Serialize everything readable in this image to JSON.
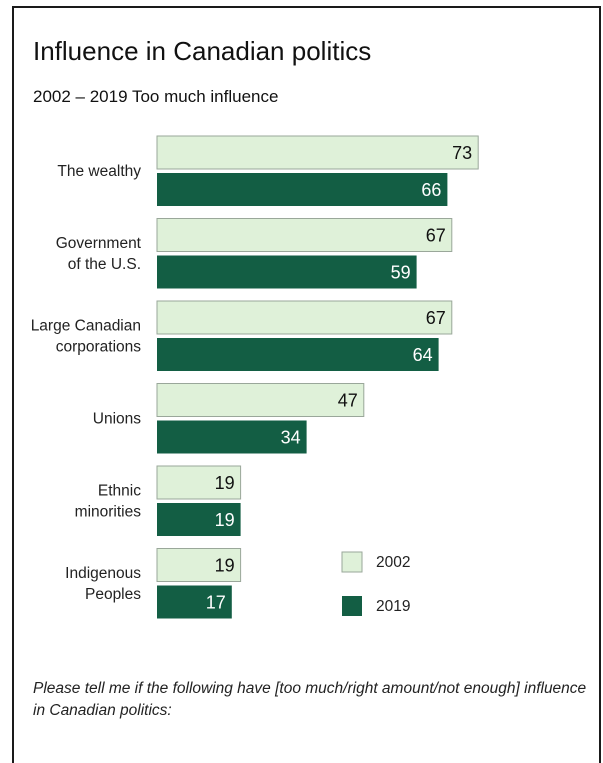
{
  "title": "Influence in Canadian politics",
  "subtitle": "2002 – 2019 Too much influence",
  "footnote": "Please tell me if the following have [too much/right amount/not enough] influence in Canadian politics:",
  "colors": {
    "series_2002_fill": "#dff1d9",
    "series_2002_stroke": "#9aa79a",
    "series_2019_fill": "#135e44",
    "label_dark": "#111111",
    "label_light": "#ffffff"
  },
  "chart_data": {
    "type": "bar",
    "orientation": "horizontal",
    "categories": [
      [
        "The wealthy"
      ],
      [
        "Government",
        "of the U.S."
      ],
      [
        "Large Canadian",
        "corporations"
      ],
      [
        "Unions"
      ],
      [
        "Ethnic",
        "minorities"
      ],
      [
        "Indigenous",
        "Peoples"
      ]
    ],
    "series": [
      {
        "name": "2002",
        "values": [
          73,
          67,
          67,
          47,
          19,
          19
        ]
      },
      {
        "name": "2019",
        "values": [
          66,
          59,
          64,
          34,
          19,
          17
        ]
      }
    ],
    "xlim": [
      0,
      100
    ],
    "grid": false,
    "legend_position": "bottom-right"
  }
}
